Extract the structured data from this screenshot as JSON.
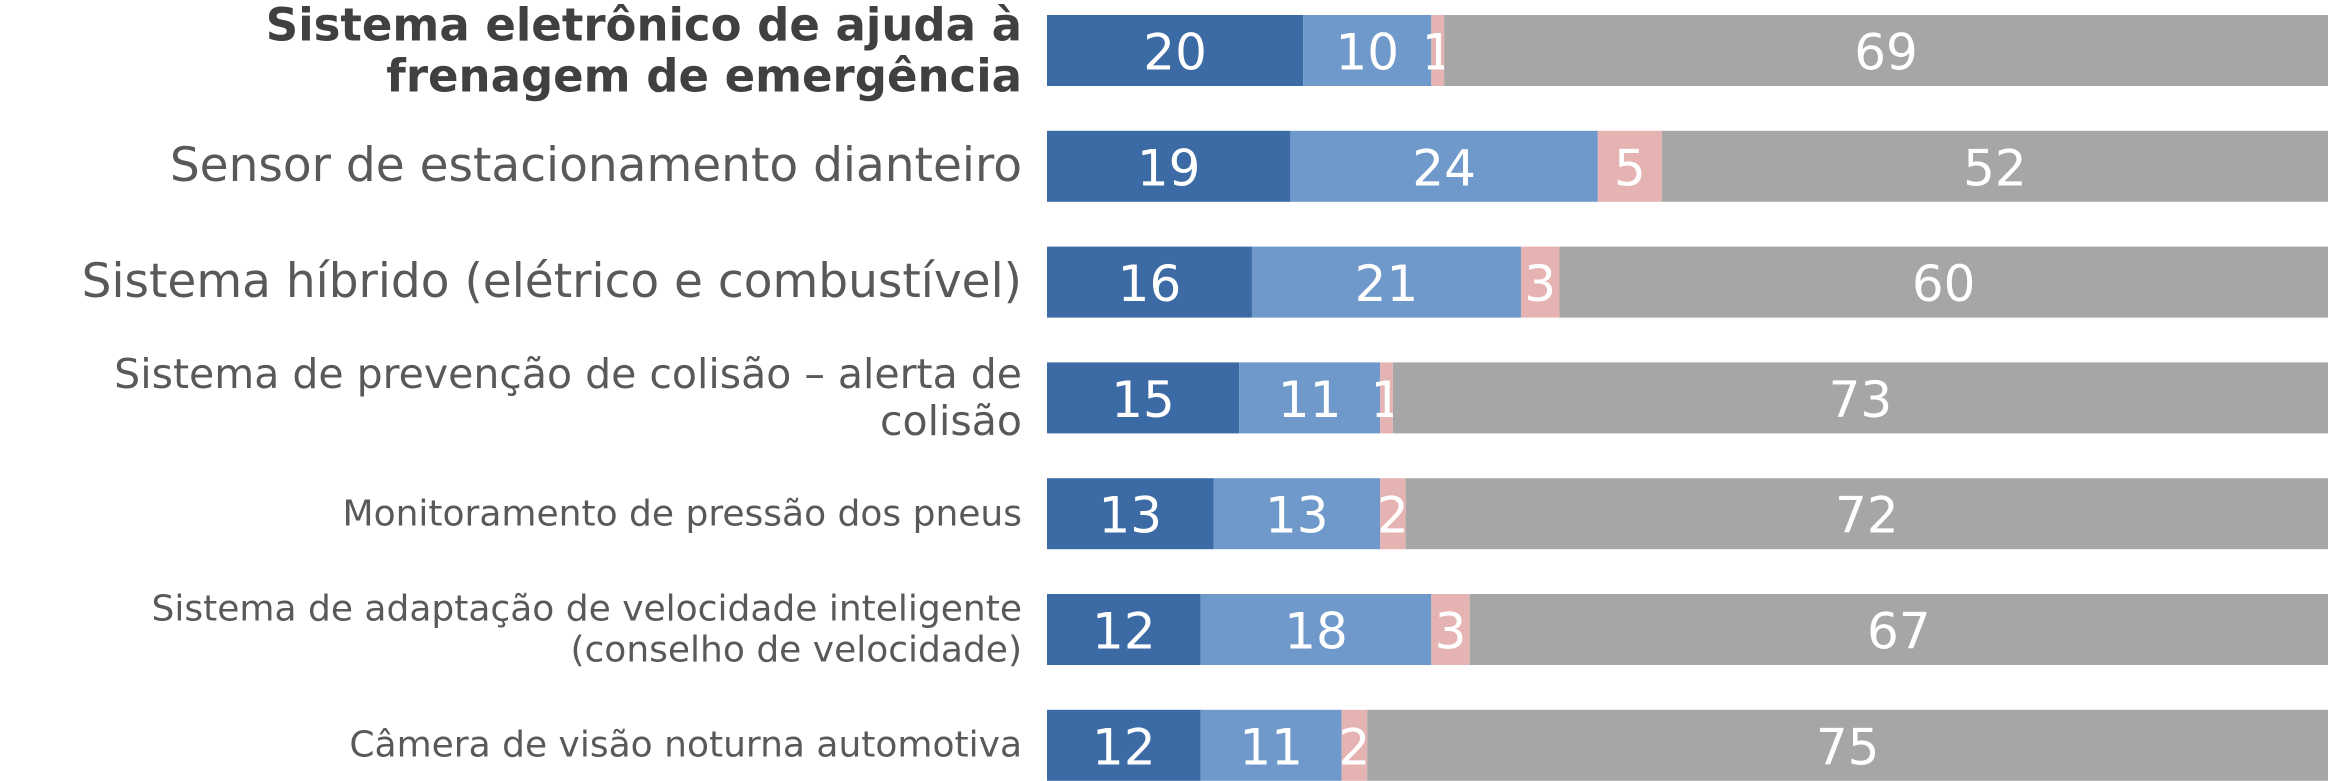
{
  "chart_data": {
    "type": "stacked-bar-horizontal",
    "categories": [
      "Sistema eletrônico de ajuda à frenagem de emergência",
      "Sensor de estacionamento dianteiro",
      "Sistema híbrido (elétrico e combustível)",
      "Sistema de prevenção de colisão – alerta de colisão",
      "Monitoramento de pressão dos pneus",
      "Sistema de adaptação de velocidade inteligente (conselho de velocidade)",
      "Câmera de visão noturna automotiva"
    ],
    "series": [
      {
        "color": "#3b6aa4",
        "values": [
          20,
          19,
          16,
          15,
          13,
          12,
          12
        ]
      },
      {
        "color": "#7099cb",
        "values": [
          10,
          24,
          21,
          11,
          13,
          18,
          11
        ]
      },
      {
        "color": "#e6b3b3",
        "values": [
          1,
          5,
          3,
          1,
          2,
          3,
          2
        ]
      },
      {
        "color": "#a6a6a6",
        "values": [
          69,
          52,
          60,
          73,
          72,
          67,
          75
        ]
      }
    ],
    "xlim": [
      0,
      100
    ]
  }
}
